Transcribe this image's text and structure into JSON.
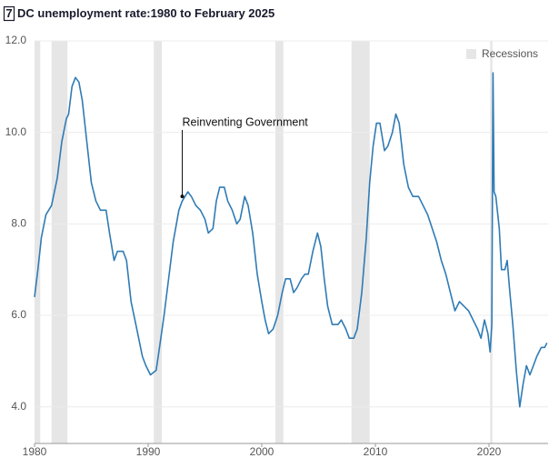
{
  "chart_data": {
    "type": "line",
    "figure_number": "7",
    "title": "DC unemployment rate:1980 to February 2025",
    "xlim": [
      1980,
      2025.2
    ],
    "xticks": [
      1980,
      1990,
      2000,
      2010,
      2020
    ],
    "ylim": [
      3.2,
      12
    ],
    "yticks": [
      {
        "value": 4,
        "label": "4.0"
      },
      {
        "value": 6,
        "label": "6.0"
      },
      {
        "value": 8,
        "label": "8.0"
      },
      {
        "value": 10,
        "label": "10.0"
      },
      {
        "value": 12,
        "label": "12.0"
      }
    ],
    "grid": true,
    "legend": "top-right",
    "recessions": {
      "name": "Recessions",
      "color": "#e6e6e6",
      "ranges": [
        [
          1980.0,
          1980.5
        ],
        [
          1981.5,
          1982.9
        ],
        [
          1990.5,
          1991.2
        ],
        [
          2001.2,
          2001.9
        ],
        [
          2007.9,
          2009.5
        ],
        [
          2020.1,
          2020.3
        ]
      ]
    },
    "annotation": {
      "text": "Reinventing Government",
      "x": 1993.0,
      "y": 8.6
    },
    "series": [
      {
        "color": "#2f7bb5",
        "x": [
          1980.0,
          1980.3,
          1980.6,
          1981.0,
          1981.5,
          1982.0,
          1982.4,
          1982.8,
          1983.0,
          1983.3,
          1983.6,
          1983.9,
          1984.2,
          1984.6,
          1985.0,
          1985.4,
          1985.8,
          1986.3,
          1986.6,
          1987.0,
          1987.3,
          1987.8,
          1988.1,
          1988.5,
          1989.0,
          1989.5,
          1989.8,
          1990.2,
          1990.7,
          1991.0,
          1991.4,
          1991.8,
          1992.2,
          1992.7,
          1993.0,
          1993.5,
          1993.8,
          1994.2,
          1994.6,
          1995.0,
          1995.3,
          1995.7,
          1996.0,
          1996.3,
          1996.7,
          1997.0,
          1997.4,
          1997.8,
          1998.1,
          1998.5,
          1998.8,
          1999.2,
          1999.6,
          2000.0,
          2000.3,
          2000.6,
          2001.0,
          2001.4,
          2001.8,
          2002.1,
          2002.5,
          2002.8,
          2003.1,
          2003.5,
          2003.8,
          2004.1,
          2004.5,
          2004.9,
          2005.2,
          2005.5,
          2005.8,
          2006.2,
          2006.7,
          2007.0,
          2007.4,
          2007.7,
          2008.1,
          2008.4,
          2008.8,
          2009.2,
          2009.5,
          2009.8,
          2010.1,
          2010.4,
          2010.8,
          2011.1,
          2011.5,
          2011.8,
          2012.1,
          2012.5,
          2012.9,
          2013.3,
          2013.8,
          2014.2,
          2014.6,
          2015.0,
          2015.4,
          2015.8,
          2016.2,
          2016.6,
          2017.0,
          2017.4,
          2017.8,
          2018.2,
          2018.6,
          2019.0,
          2019.3,
          2019.6,
          2019.9,
          2020.1,
          2020.25,
          2020.35,
          2020.45,
          2020.6,
          2020.9,
          2021.1,
          2021.4,
          2021.6,
          2021.8,
          2022.1,
          2022.4,
          2022.7,
          2023.0,
          2023.3,
          2023.6,
          2023.9,
          2024.2,
          2024.6,
          2024.9,
          2025.1
        ],
        "values": [
          6.4,
          7.0,
          7.7,
          8.2,
          8.4,
          9.0,
          9.8,
          10.3,
          10.4,
          11.0,
          11.2,
          11.1,
          10.7,
          9.8,
          8.9,
          8.5,
          8.3,
          8.3,
          7.8,
          7.2,
          7.4,
          7.4,
          7.2,
          6.3,
          5.7,
          5.1,
          4.9,
          4.7,
          4.8,
          5.3,
          6.0,
          6.8,
          7.6,
          8.3,
          8.5,
          8.7,
          8.6,
          8.4,
          8.3,
          8.1,
          7.8,
          7.9,
          8.5,
          8.8,
          8.8,
          8.5,
          8.3,
          8.0,
          8.1,
          8.6,
          8.4,
          7.8,
          6.9,
          6.3,
          5.9,
          5.6,
          5.7,
          6.0,
          6.5,
          6.8,
          6.8,
          6.5,
          6.6,
          6.8,
          6.9,
          6.9,
          7.4,
          7.8,
          7.5,
          6.8,
          6.2,
          5.8,
          5.8,
          5.9,
          5.7,
          5.5,
          5.5,
          5.7,
          6.5,
          7.7,
          8.9,
          9.7,
          10.2,
          10.2,
          9.6,
          9.7,
          10.0,
          10.4,
          10.2,
          9.3,
          8.8,
          8.6,
          8.6,
          8.4,
          8.2,
          7.9,
          7.6,
          7.2,
          6.9,
          6.5,
          6.1,
          6.3,
          6.2,
          6.1,
          5.9,
          5.7,
          5.5,
          5.9,
          5.6,
          5.2,
          5.8,
          11.3,
          8.7,
          8.6,
          7.9,
          7.0,
          7.0,
          7.2,
          6.6,
          5.8,
          4.8,
          4.0,
          4.5,
          4.9,
          4.7,
          4.9,
          5.1,
          5.3,
          5.3,
          5.4
        ]
      }
    ]
  }
}
